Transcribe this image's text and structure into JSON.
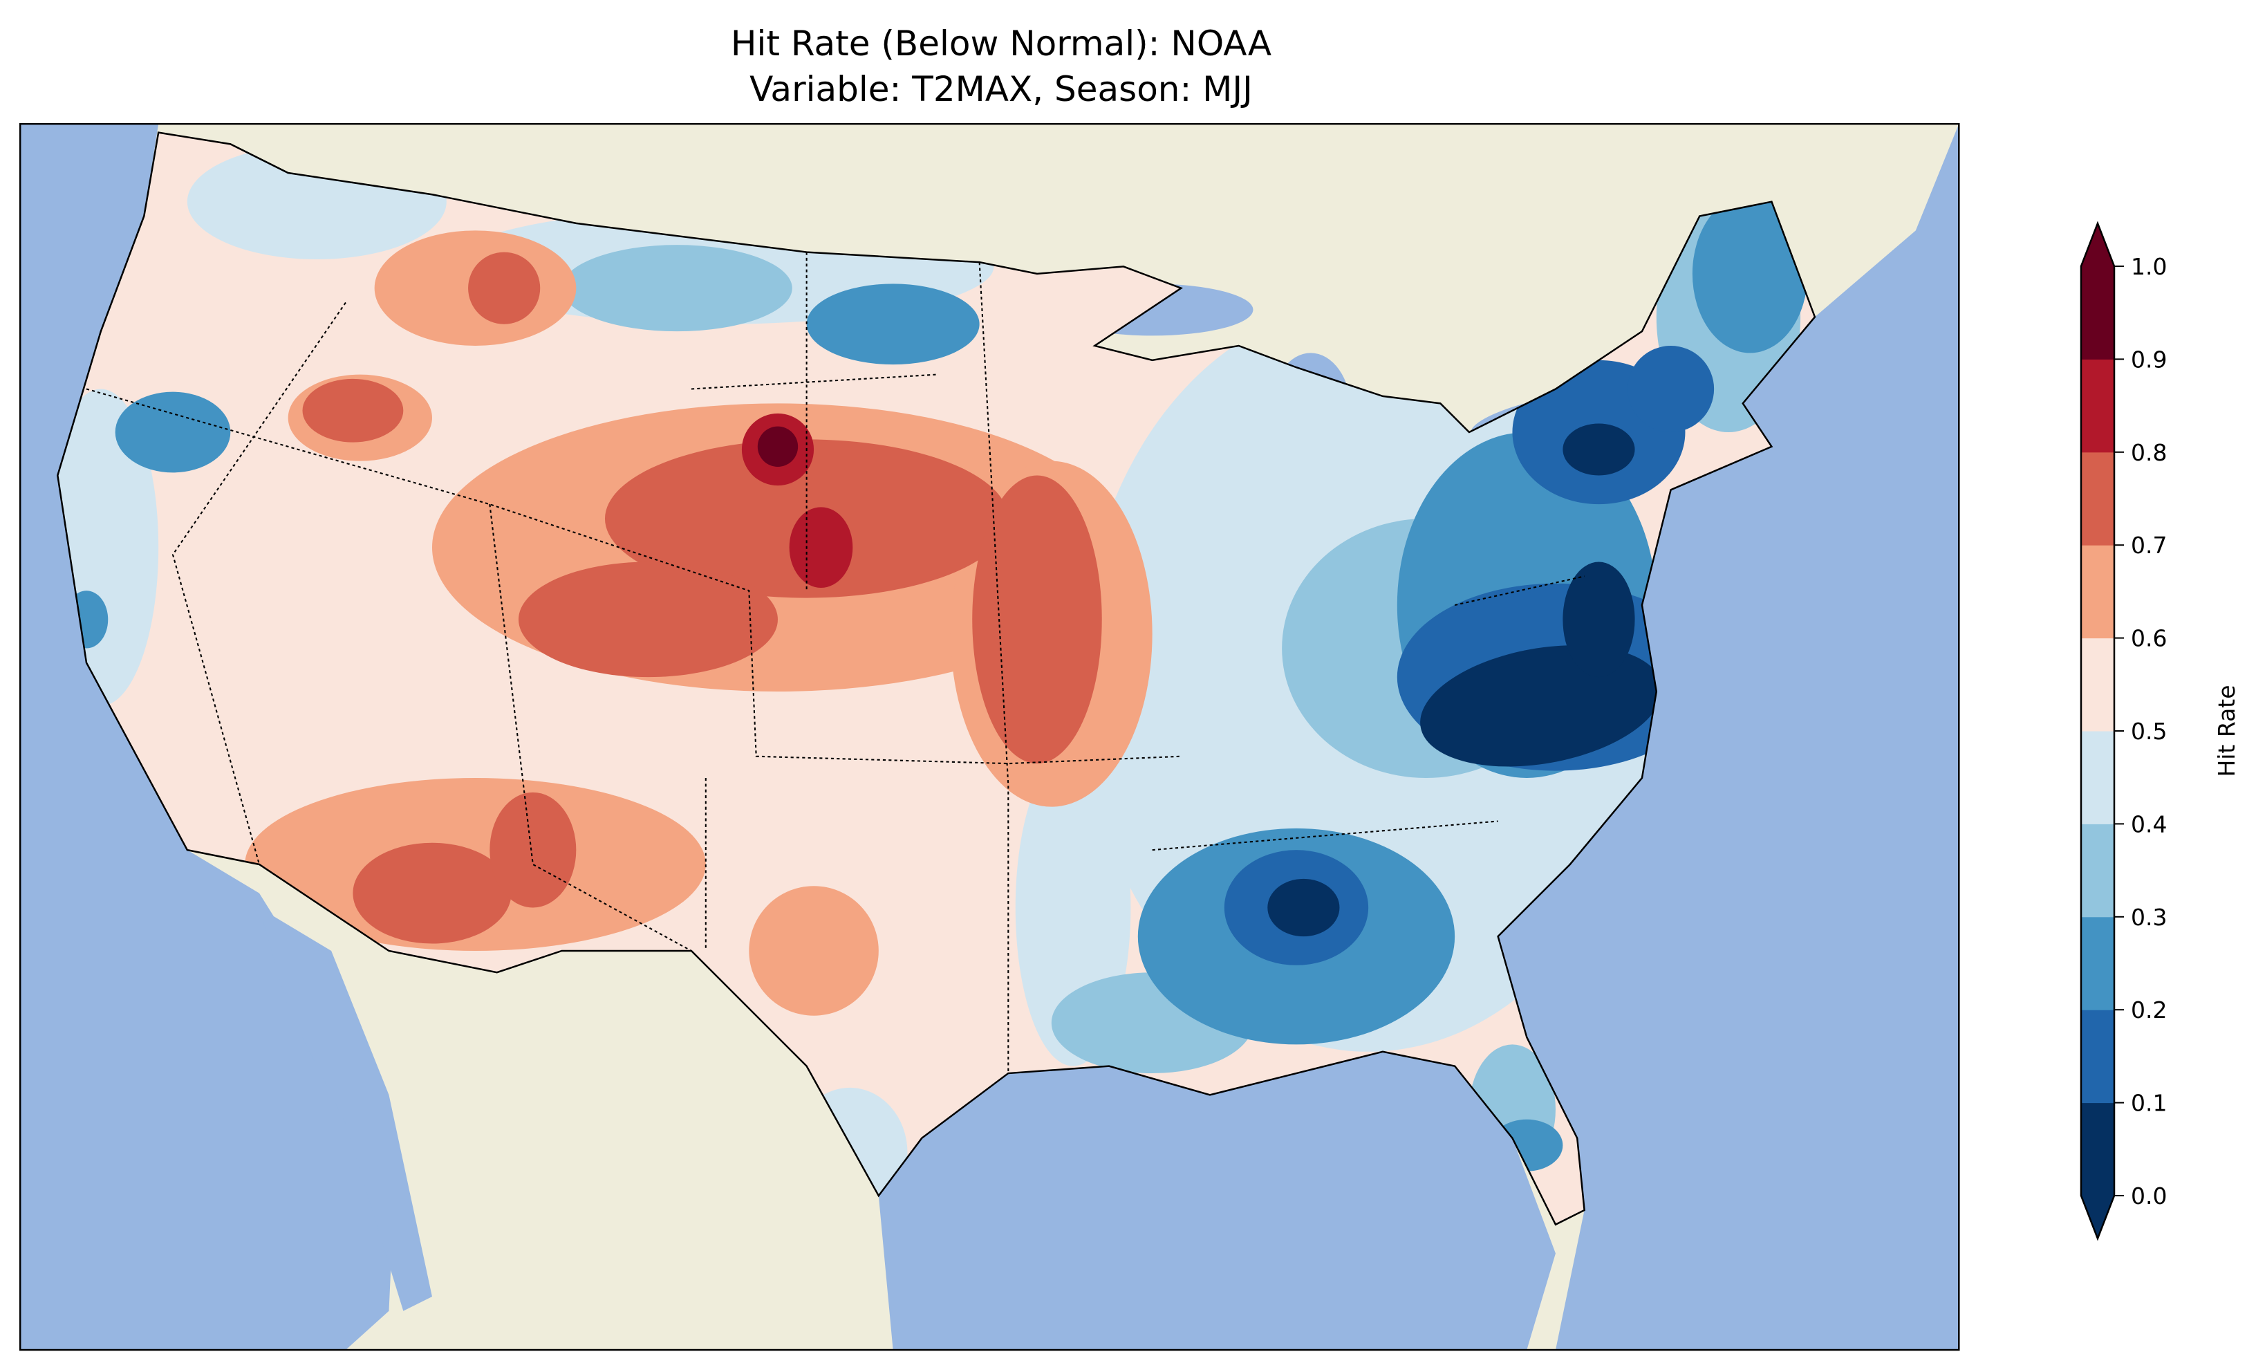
{
  "title_line1": "Hit Rate (Below Normal): NOAA",
  "title_line2": "Variable: T2MAX, Season: MJJ",
  "chart_data": {
    "type": "heatmap",
    "title": "Hit Rate (Below Normal): NOAA\nVariable: T2MAX, Season: MJJ",
    "variable": "T2MAX",
    "season": "MJJ",
    "model": "NOAA",
    "colorbar": {
      "label": "Hit Rate",
      "range": [
        0.0,
        1.0
      ],
      "extend": "both",
      "levels": [
        0.0,
        0.1,
        0.2,
        0.3,
        0.4,
        0.5,
        0.6,
        0.7,
        0.8,
        0.9,
        1.0
      ],
      "tick_labels": [
        "0.0",
        "0.1",
        "0.2",
        "0.3",
        "0.4",
        "0.5",
        "0.6",
        "0.7",
        "0.8",
        "0.9",
        "1.0"
      ],
      "colors": [
        "#053061",
        "#2166ac",
        "#4393c3",
        "#92c5de",
        "#d1e5f0",
        "#fae5dc",
        "#f4a582",
        "#d6604d",
        "#b2182b",
        "#67001f"
      ]
    },
    "map_colors": {
      "ocean": "#97b6e1",
      "land": "#efeddb"
    }
  }
}
